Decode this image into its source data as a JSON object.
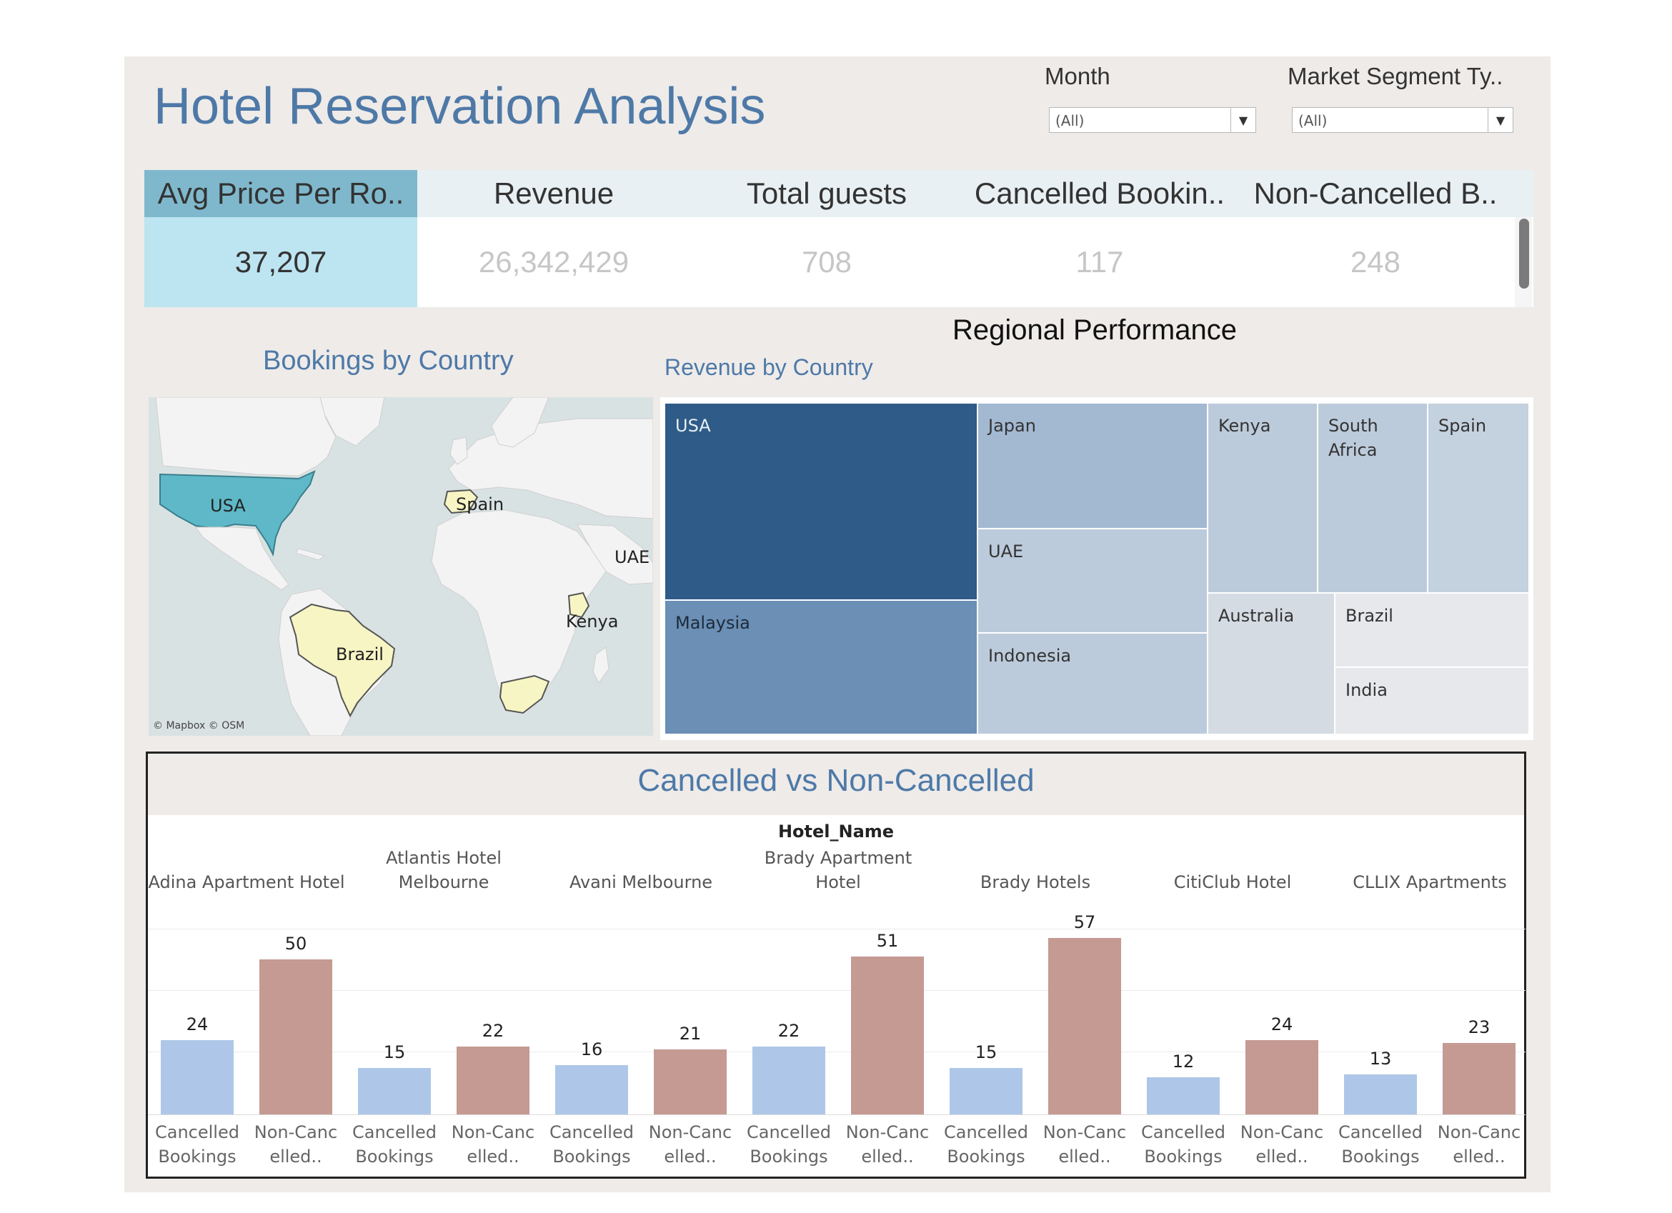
{
  "title": "Hotel Reservation Analysis",
  "filters": [
    {
      "label": "Month",
      "value": "(All)"
    },
    {
      "label": "Market Segment Ty..",
      "value": "(All)"
    }
  ],
  "kpis": [
    {
      "label": "Avg Price Per Ro..",
      "value": "37,207",
      "selected": true
    },
    {
      "label": "Revenue",
      "value": "26,342,429"
    },
    {
      "label": "Total guests",
      "value": "708"
    },
    {
      "label": "Cancelled Bookin..",
      "value": "117"
    },
    {
      "label": "Non-Cancelled B..",
      "value": "248"
    }
  ],
  "regional_title": "Regional Performance",
  "map": {
    "title": "Bookings by Country",
    "labels": [
      "USA",
      "Spain",
      "UAE",
      "Kenya",
      "Brazil"
    ],
    "attribution": "© Mapbox © OSM"
  },
  "treemap": {
    "title": "Revenue by Country",
    "cells": [
      "USA",
      "Japan",
      "Kenya",
      "South Africa",
      "Spain",
      "UAE",
      "Malaysia",
      "Indonesia",
      "Australia",
      "Brazil",
      "India"
    ]
  },
  "bar_section": {
    "title": "Cancelled vs Non-Cancelled",
    "header": "Hotel_Name",
    "hotels": [
      "Adina Apartment Hotel",
      "Atlantis Hotel Melbourne",
      "Avani Melbourne",
      "Brady Apartment Hotel",
      "Brady Hotels",
      "CitiClub Hotel",
      "CLLIX Apartments"
    ],
    "xlabels": [
      "Cancelled Bookings",
      "Non-Canc elled.."
    ]
  },
  "colors": {
    "accent": "#4e79a7",
    "cancelled": "#aec7e8",
    "non_cancelled": "#c49a93",
    "map_highlight": "#5fb8c7",
    "map_light": "#f7f5c4",
    "kpi_selected": "#bde4f1"
  },
  "chart_data": {
    "type": "bar",
    "categories": [
      "Adina Apartment Hotel",
      "Atlantis Hotel Melbourne",
      "Avani Melbourne",
      "Brady Apartment Hotel",
      "Brady Hotels",
      "CitiClub Hotel",
      "CLLIX Apartments"
    ],
    "series": [
      {
        "name": "Cancelled Bookings",
        "values": [
          24,
          15,
          16,
          22,
          15,
          12,
          13
        ]
      },
      {
        "name": "Non-Canc elled..",
        "values": [
          50,
          22,
          21,
          51,
          57,
          24,
          23
        ]
      }
    ],
    "title": "Cancelled vs Non-Cancelled",
    "xlabel": "Hotel_Name",
    "ylabel": "",
    "ylim": [
      0,
      60
    ]
  }
}
